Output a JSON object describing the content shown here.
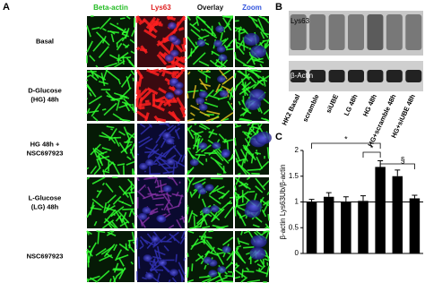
{
  "panel_a": {
    "label": "A",
    "columns": [
      "Beta-actin",
      "Lys63",
      "Overlay",
      "Zoom"
    ],
    "rows": [
      {
        "label": [
          "Basal"
        ]
      },
      {
        "label": [
          "D-Glucose",
          "(HG) 48h"
        ]
      },
      {
        "label": [
          "HG 48h +",
          "NSC697923"
        ]
      },
      {
        "label": [
          "L-Glucose",
          "(LG) 48h"
        ]
      },
      {
        "label": [
          "NSC697923"
        ]
      }
    ]
  },
  "panel_b": {
    "label": "B",
    "bands": [
      "Lys63",
      "β-Actin"
    ],
    "lanes": [
      "HK2 Basal",
      "scramble",
      "siUBE",
      "LG 48h",
      "HG 48h",
      "HG+scramble 48h",
      "HG+siUBE 48h"
    ]
  },
  "chart_data": {
    "type": "bar",
    "panel": "C",
    "y_label": "β-actin Lys63Ub/β-actin",
    "values": [
      1.0,
      1.1,
      1.0,
      1.02,
      1.68,
      1.5,
      1.07
    ],
    "errors": [
      0.05,
      0.08,
      0.1,
      0.1,
      0.12,
      0.12,
      0.06
    ],
    "color": "#000000",
    "ylim": [
      0,
      2
    ],
    "yticks": [
      0,
      0.5,
      1,
      1.5,
      2
    ],
    "reference_line": 1,
    "annotations": [
      {
        "text": "*",
        "from": 0,
        "to": 4
      },
      {
        "text": "*",
        "from": 3,
        "to": 4
      },
      {
        "text": "§",
        "from": 4,
        "to": 6
      }
    ]
  }
}
